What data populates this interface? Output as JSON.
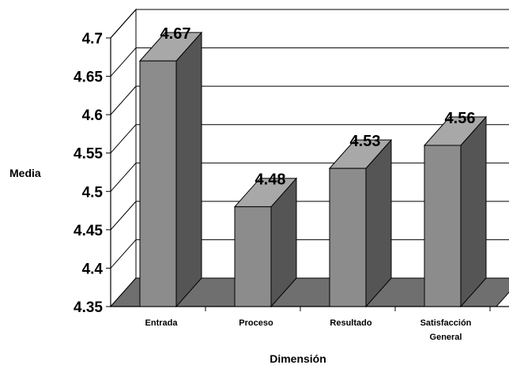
{
  "chart_data": {
    "type": "bar",
    "categories": [
      "Entrada",
      "Proceso",
      "Resultado",
      "Satisfacción General"
    ],
    "values": [
      4.67,
      4.48,
      4.53,
      4.56
    ],
    "data_labels": [
      "4.67",
      "4.48",
      "4.53",
      "4.56"
    ],
    "title": "",
    "xlabel": "Dimensión",
    "ylabel": "Media",
    "ylim": [
      4.35,
      4.7
    ],
    "yticks": [
      "4.35",
      "4.4",
      "4.45",
      "4.5",
      "4.55",
      "4.6",
      "4.65",
      "4.7"
    ],
    "grid": true,
    "three_d": true,
    "colors": {
      "bar_front": "#8c8c8c",
      "bar_top": "#a8a8a8",
      "bar_side": "#555555",
      "floor": "#6f6f6f",
      "wall": "#ffffff",
      "outline": "#000000"
    }
  }
}
